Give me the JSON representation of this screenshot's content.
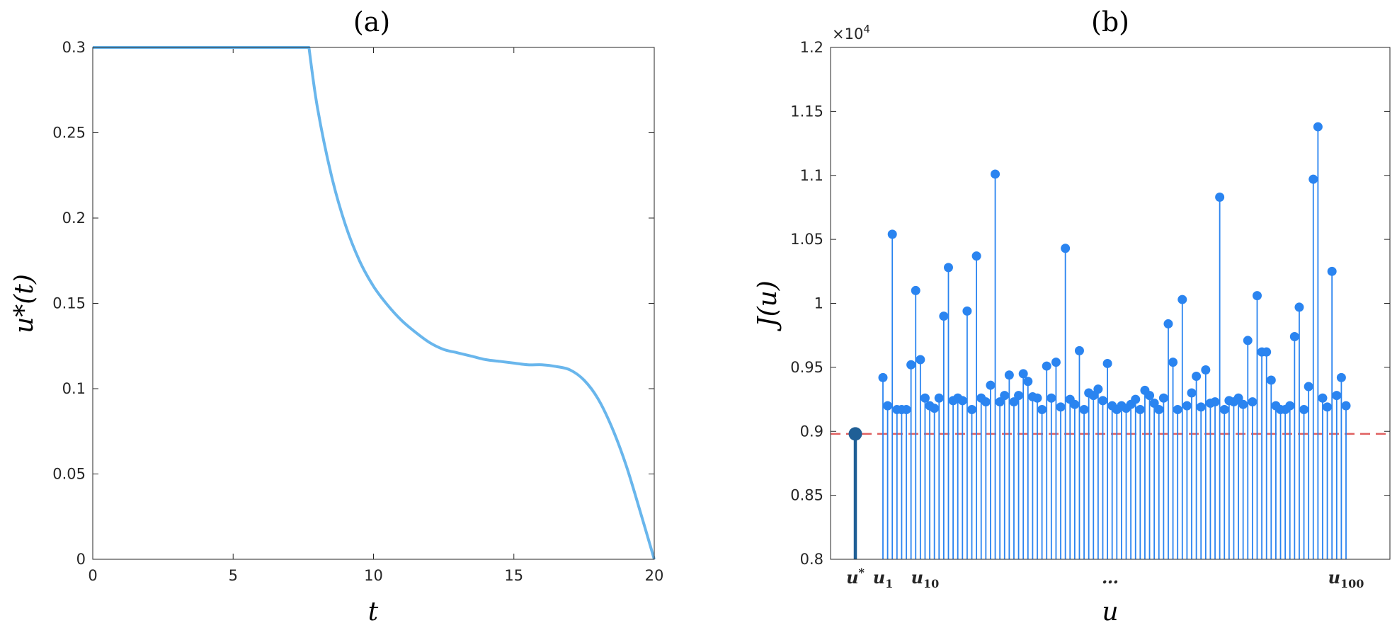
{
  "chart_data": [
    {
      "type": "line",
      "title": "(a)",
      "xlabel": "t",
      "ylabel": "u*(t)",
      "xlim": [
        0,
        20
      ],
      "ylim": [
        0,
        0.3
      ],
      "xticks": [
        0,
        5,
        10,
        15,
        20
      ],
      "yticks": [
        0,
        0.05,
        0.1,
        0.15,
        0.2,
        0.25,
        0.3
      ],
      "xtick_labels": [
        "0",
        "5",
        "10",
        "15",
        "20"
      ],
      "ytick_labels": [
        "0",
        "0.05",
        "0.1",
        "0.15",
        "0.2",
        "0.25",
        "0.3"
      ],
      "line_color": "#69b6ec",
      "series": [
        {
          "name": "u*(t)",
          "x": [
            0,
            7.7,
            8.0,
            8.5,
            9.0,
            9.5,
            10.0,
            10.5,
            11.0,
            11.5,
            12.0,
            12.5,
            13.0,
            13.5,
            14.0,
            14.5,
            15.0,
            15.5,
            16.0,
            16.5,
            17.0,
            17.5,
            18.0,
            18.5,
            19.0,
            19.5,
            20.0
          ],
          "y": [
            0.3,
            0.3,
            0.265,
            0.225,
            0.196,
            0.175,
            0.16,
            0.149,
            0.14,
            0.133,
            0.127,
            0.123,
            0.121,
            0.119,
            0.117,
            0.116,
            0.115,
            0.114,
            0.114,
            0.113,
            0.111,
            0.105,
            0.094,
            0.077,
            0.055,
            0.028,
            0.0
          ]
        }
      ]
    },
    {
      "type": "stem",
      "title": "(b)",
      "xlabel": "u",
      "ylabel": "J(u)",
      "ylim": [
        0.8,
        1.2
      ],
      "y_exponent_label": "×10",
      "y_exponent_power": "4",
      "yticks": [
        0.8,
        0.85,
        0.9,
        0.95,
        1.0,
        1.05,
        1.1,
        1.15,
        1.2
      ],
      "ytick_labels": [
        "0.8",
        "0.85",
        "0.9",
        "0.95",
        "1",
        "1.05",
        "1.1",
        "1.15",
        "1.2"
      ],
      "category_labels": [
        {
          "base": "u",
          "mark": "*",
          "kind": "sup",
          "index": 0
        },
        {
          "base": "u",
          "mark": "1",
          "kind": "sub",
          "index": 1
        },
        {
          "base": "u",
          "mark": "10",
          "kind": "sub",
          "index": 10
        },
        {
          "base": "…",
          "mark": "",
          "kind": "none",
          "index": 50
        },
        {
          "base": "u",
          "mark": "100",
          "kind": "sub",
          "index": 100
        }
      ],
      "optimal": {
        "name": "u*",
        "value": 0.898,
        "color": "#1f5f96"
      },
      "reference_line": {
        "value": 0.898,
        "color": "#e06060",
        "style": "dashed"
      },
      "stem_color": "#2a84f0",
      "values": [
        0.942,
        0.92,
        1.054,
        0.917,
        0.917,
        0.917,
        0.952,
        1.01,
        0.956,
        0.926,
        0.92,
        0.918,
        0.926,
        0.99,
        1.028,
        0.924,
        0.926,
        0.924,
        0.994,
        0.917,
        1.037,
        0.926,
        0.923,
        0.936,
        1.101,
        0.923,
        0.928,
        0.944,
        0.923,
        0.928,
        0.945,
        0.939,
        0.927,
        0.926,
        0.917,
        0.951,
        0.926,
        0.954,
        0.919,
        1.043,
        0.925,
        0.921,
        0.963,
        0.917,
        0.93,
        0.928,
        0.933,
        0.924,
        0.953,
        0.92,
        0.917,
        0.92,
        0.918,
        0.921,
        0.925,
        0.917,
        0.932,
        0.928,
        0.922,
        0.917,
        0.926,
        0.984,
        0.954,
        0.917,
        1.003,
        0.92,
        0.93,
        0.943,
        0.919,
        0.948,
        0.922,
        0.923,
        1.083,
        0.917,
        0.924,
        0.923,
        0.926,
        0.921,
        0.971,
        0.923,
        1.006,
        0.962,
        0.962,
        0.94,
        0.92,
        0.917,
        0.917,
        0.92,
        0.974,
        0.997,
        0.917,
        0.935,
        1.097,
        1.138,
        0.926,
        0.919,
        1.025,
        0.928,
        0.942,
        0.92
      ]
    }
  ]
}
